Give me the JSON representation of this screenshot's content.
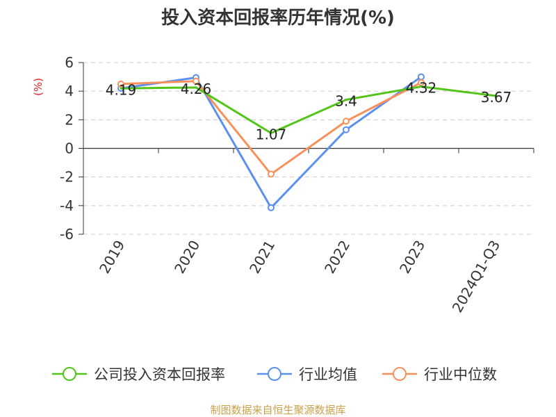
{
  "chart_data": {
    "type": "line",
    "title": "投入资本回报率历年情况(%)",
    "ylabel": "(%)",
    "xlabel": "",
    "categories": [
      "2019",
      "2020",
      "2021",
      "2022",
      "2023",
      "2024Q1-Q3"
    ],
    "ylim": [
      -6,
      6
    ],
    "yticks": [
      6,
      4,
      2,
      0,
      -2,
      -4,
      -6
    ],
    "grid": true,
    "legend_position": "bottom",
    "series": [
      {
        "name": "公司投入资本回报率",
        "color": "#52c41a",
        "values": [
          4.19,
          4.26,
          1.07,
          3.4,
          4.32,
          3.67
        ],
        "labels": [
          "4.19",
          "4.26",
          "1.07",
          "3.4",
          "4.32",
          "3.67"
        ],
        "markers": false
      },
      {
        "name": "行业均值",
        "color": "#5b8ff0",
        "values": [
          4.2,
          4.95,
          -4.15,
          1.3,
          5.0,
          null
        ],
        "markers": true
      },
      {
        "name": "行业中位数",
        "color": "#f7905a",
        "values": [
          4.5,
          4.7,
          -1.8,
          1.9,
          4.6,
          null
        ],
        "markers": true
      }
    ]
  },
  "unit_color": "#e02020",
  "source": {
    "text": "制图数据来自恒生聚源数据库",
    "color": "#c8a24a"
  }
}
